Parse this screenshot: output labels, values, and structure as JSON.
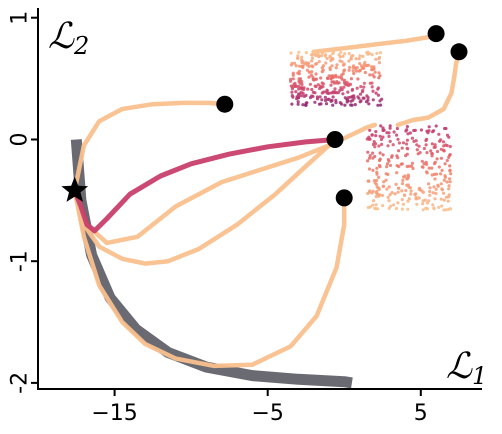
{
  "chart_data": {
    "type": "line",
    "xlabel": "ℒ",
    "xlabel_subscript": "1",
    "ylabel": "ℒ",
    "ylabel_subscript": "2",
    "xlim": [
      -20,
      9
    ],
    "ylim": [
      -2.05,
      1.08
    ],
    "xticks": [
      -15,
      -5,
      5
    ],
    "xtick_labels": [
      "−15",
      "−5",
      "5"
    ],
    "yticks": [
      1,
      0,
      -1,
      -2
    ],
    "ytick_labels": [
      "1",
      "0",
      "-1",
      "-2"
    ],
    "grid": false,
    "colors": {
      "front": "#6a6a72",
      "pale": "#f9c08d",
      "magenta": "#c83f6c",
      "marker": "#000000"
    },
    "pareto_front": {
      "name": "",
      "x": [
        -17.5,
        -17.2,
        -16.5,
        -15.3,
        -13.6,
        -11.5,
        -9.0,
        -6.0,
        -3.0,
        0.0,
        0.5
      ],
      "y": [
        0.0,
        -0.5,
        -0.95,
        -1.3,
        -1.56,
        -1.75,
        -1.87,
        -1.94,
        -1.97,
        -1.99,
        -2.0
      ]
    },
    "start_point": {
      "x": -17.6,
      "y": -0.42,
      "marker": "star"
    },
    "end_points": [
      {
        "x": 6.0,
        "y": 0.87
      },
      {
        "x": 7.5,
        "y": 0.72
      },
      {
        "x": -7.8,
        "y": 0.29
      },
      {
        "x": -0.6,
        "y": 0.0
      },
      {
        "x": 0.0,
        "y": -0.48
      }
    ],
    "trajectories": [
      {
        "color": "pale",
        "x": [
          -17.6,
          -17.0,
          -16.0,
          -14.5,
          -12.5,
          -10.5,
          -8.8,
          -7.8
        ],
        "y": [
          -0.42,
          -0.05,
          0.15,
          0.25,
          0.29,
          0.3,
          0.3,
          0.29
        ]
      },
      {
        "color": "pale",
        "x": [
          -17.6,
          -17.0,
          -16.0,
          -14.5,
          -13.0,
          -11.5,
          -9.5,
          -7.0,
          -4.5,
          -2.5,
          -1.0,
          -0.6
        ],
        "y": [
          -0.42,
          -0.7,
          -0.88,
          -0.98,
          -1.02,
          -1.0,
          -0.9,
          -0.7,
          -0.45,
          -0.22,
          -0.05,
          0.0
        ]
      },
      {
        "color": "pale",
        "x": [
          -17.6,
          -17.0,
          -16.0,
          -14.5,
          -13.0,
          -11.0,
          -8.5,
          -6.0,
          -3.5,
          -1.8,
          -0.5,
          0.0,
          0.0
        ],
        "y": [
          -0.42,
          -0.8,
          -1.2,
          -1.5,
          -1.68,
          -1.8,
          -1.86,
          -1.85,
          -1.7,
          -1.45,
          -1.05,
          -0.7,
          -0.48
        ]
      },
      {
        "color": "pale",
        "x": [
          -17.6,
          -17.0,
          -15.5,
          -13.5,
          -11.0,
          -8.0,
          -5.5,
          -3.0,
          -1.0,
          0.5,
          1.5,
          2.0
        ],
        "y": [
          -0.42,
          -0.68,
          -0.85,
          -0.8,
          -0.55,
          -0.35,
          -0.25,
          -0.15,
          -0.05,
          0.04,
          0.1,
          0.12
        ]
      },
      {
        "color": "pale",
        "x": [
          3.5,
          4.5,
          5.5,
          6.5,
          7.0,
          7.2,
          7.3,
          7.5
        ],
        "y": [
          0.12,
          0.16,
          0.18,
          0.25,
          0.38,
          0.52,
          0.62,
          0.72
        ]
      },
      {
        "color": "pale",
        "x": [
          -2.0,
          0.0,
          2.0,
          4.0,
          5.5,
          6.0
        ],
        "y": [
          0.72,
          0.75,
          0.78,
          0.81,
          0.84,
          0.87
        ]
      },
      {
        "color": "magenta",
        "x": [
          -17.6,
          -17.2,
          -16.8,
          -16.3,
          -15.5,
          -14.0,
          -12.0,
          -10.0,
          -7.5,
          -5.0,
          -2.5,
          -0.6
        ],
        "y": [
          -0.42,
          -0.55,
          -0.7,
          -0.75,
          -0.65,
          -0.45,
          -0.3,
          -0.2,
          -0.12,
          -0.06,
          -0.02,
          0.0
        ]
      }
    ],
    "scatter_clusters": [
      {
        "x_range": [
          -3.5,
          2.5
        ],
        "y_range": [
          0.28,
          0.72
        ],
        "count": 340
      },
      {
        "x_range": [
          1.5,
          7.0
        ],
        "y_range": [
          -0.58,
          0.12
        ],
        "count": 300
      }
    ]
  }
}
